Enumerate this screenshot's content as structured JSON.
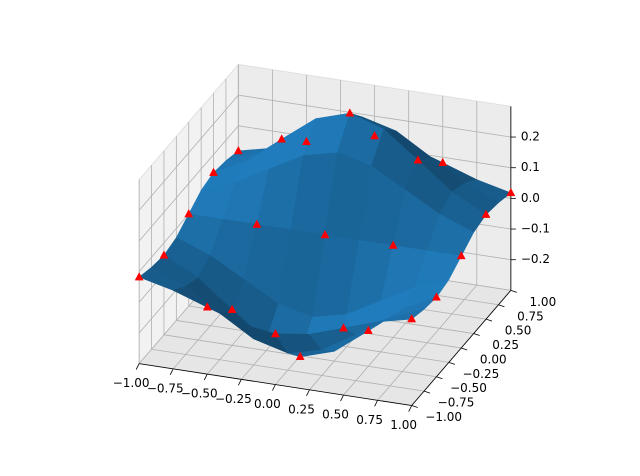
{
  "chart_data": {
    "type": "surface3d",
    "xlim": [
      -1,
      1
    ],
    "ylim": [
      -1,
      1
    ],
    "zlim": [
      -0.3,
      0.3
    ],
    "xticks": [
      {
        "value": -1,
        "label": "−1.00"
      },
      {
        "value": -0.75,
        "label": "−0.75"
      },
      {
        "value": -0.5,
        "label": "−0.50"
      },
      {
        "value": -0.25,
        "label": "−0.25"
      },
      {
        "value": 0,
        "label": "0.00"
      },
      {
        "value": 0.25,
        "label": "0.25"
      },
      {
        "value": 0.5,
        "label": "0.50"
      },
      {
        "value": 0.75,
        "label": "0.75"
      },
      {
        "value": 1,
        "label": "1.00"
      }
    ],
    "yticks": [
      {
        "value": -1,
        "label": "−1.00"
      },
      {
        "value": -0.75,
        "label": "−0.75"
      },
      {
        "value": -0.5,
        "label": "−0.50"
      },
      {
        "value": -0.25,
        "label": "−0.25"
      },
      {
        "value": 0,
        "label": "0.00"
      },
      {
        "value": 0.25,
        "label": "0.25"
      },
      {
        "value": 0.5,
        "label": "0.50"
      },
      {
        "value": 0.75,
        "label": "0.75"
      },
      {
        "value": 1,
        "label": "1.00"
      }
    ],
    "zticks": [
      {
        "value": -0.2,
        "label": "−0.2"
      },
      {
        "value": -0.1,
        "label": "−0.1"
      },
      {
        "value": 0,
        "label": "0.0"
      },
      0.1,
      0.2
    ],
    "grid": true,
    "surface": {
      "color": "#1f77b4",
      "x": [
        -1,
        -0.75,
        -0.5,
        -0.25,
        0,
        0.25,
        0.5,
        0.75,
        1
      ],
      "y": [
        -1,
        -0.75,
        -0.5,
        -0.25,
        0,
        0.25,
        0.5,
        0.75,
        1
      ],
      "z": [
        [
          -0.018,
          -0.044,
          -0.082,
          -0.119,
          -0.135,
          -0.119,
          -0.082,
          -0.044,
          -0.018
        ],
        [
          -0.033,
          -0.079,
          -0.148,
          -0.215,
          -0.244,
          -0.215,
          -0.148,
          -0.079,
          -0.033
        ],
        [
          -0.041,
          -0.098,
          -0.184,
          -0.268,
          -0.303,
          -0.268,
          -0.184,
          -0.098,
          -0.041
        ],
        [
          -0.03,
          -0.072,
          -0.134,
          -0.195,
          -0.221,
          -0.195,
          -0.134,
          -0.072,
          -0.03
        ],
        [
          0,
          0,
          0,
          0,
          0,
          0,
          0,
          0,
          0
        ],
        [
          0.03,
          0.072,
          0.134,
          0.195,
          0.221,
          0.195,
          0.134,
          0.072,
          0.03
        ],
        [
          0.041,
          0.098,
          0.184,
          0.268,
          0.303,
          0.268,
          0.184,
          0.098,
          0.041
        ],
        [
          0.033,
          0.079,
          0.148,
          0.215,
          0.244,
          0.215,
          0.148,
          0.079,
          0.033
        ],
        [
          0.018,
          0.044,
          0.082,
          0.119,
          0.135,
          0.119,
          0.082,
          0.044,
          0.018
        ]
      ]
    },
    "scatter": {
      "color": "#ff0000",
      "marker": "triangle",
      "x": [
        -1,
        -0.5,
        0,
        0.5,
        1,
        -1,
        -0.5,
        0,
        0.5,
        1,
        -1,
        -0.5,
        0,
        0.5,
        1,
        -1,
        -0.5,
        0,
        0.5,
        1,
        -1,
        -0.5,
        0,
        0.5,
        1
      ],
      "y": [
        -1,
        -1,
        -1,
        -1,
        -1,
        -0.5,
        -0.5,
        -0.5,
        -0.5,
        -0.5,
        0,
        0,
        0,
        0,
        0,
        0.5,
        0.5,
        0.5,
        0.5,
        0.5,
        1,
        1,
        1,
        1,
        1
      ],
      "z": [
        -0.018,
        -0.082,
        -0.135,
        -0.082,
        -0.018,
        -0.041,
        -0.184,
        -0.303,
        -0.184,
        -0.041,
        0,
        0,
        0,
        0,
        0,
        0.041,
        0.184,
        0.303,
        0.184,
        0.041,
        0.018,
        0.082,
        0.135,
        0.082,
        0.018
      ]
    }
  }
}
